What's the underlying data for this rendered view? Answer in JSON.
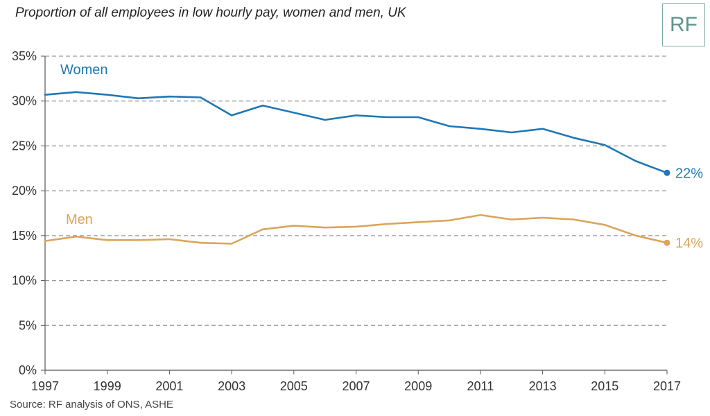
{
  "title": "Proportion of all employees in low hourly pay, women and men, UK",
  "source": "Source: RF analysis of ONS, ASHE",
  "logo_text": "RF",
  "colors": {
    "women": "#1f77b4",
    "men": "#d9a55a",
    "grid": "#999999",
    "axis": "#555555",
    "logo": "#5e948e"
  },
  "chart_data": {
    "type": "line",
    "x": [
      1997,
      1998,
      1999,
      2000,
      2001,
      2002,
      2003,
      2004,
      2005,
      2006,
      2007,
      2008,
      2009,
      2010,
      2011,
      2012,
      2013,
      2014,
      2015,
      2016,
      2017
    ],
    "series": [
      {
        "name": "Women",
        "end_label": "22%",
        "color": "#1f77b4",
        "values": [
          30.7,
          31.0,
          30.7,
          30.3,
          30.5,
          30.4,
          28.4,
          29.5,
          28.7,
          27.9,
          28.4,
          28.2,
          28.2,
          27.2,
          26.9,
          26.5,
          26.9,
          25.9,
          25.1,
          23.3,
          22.0
        ]
      },
      {
        "name": "Men",
        "end_label": "14%",
        "color": "#d9a55a",
        "values": [
          14.4,
          14.9,
          14.5,
          14.5,
          14.6,
          14.2,
          14.1,
          15.7,
          16.1,
          15.9,
          16.0,
          16.3,
          16.5,
          16.7,
          17.3,
          16.8,
          17.0,
          16.8,
          16.2,
          15.0,
          14.2
        ]
      }
    ],
    "xticks": [
      "1997",
      "1999",
      "2001",
      "2003",
      "2005",
      "2007",
      "2009",
      "2011",
      "2013",
      "2015",
      "2017"
    ],
    "yticks": [
      "0%",
      "5%",
      "10%",
      "15%",
      "20%",
      "25%",
      "30%",
      "35%"
    ],
    "ylim": [
      0,
      35
    ],
    "xlim": [
      1997,
      2017
    ],
    "grid": true,
    "legend": "inline"
  }
}
